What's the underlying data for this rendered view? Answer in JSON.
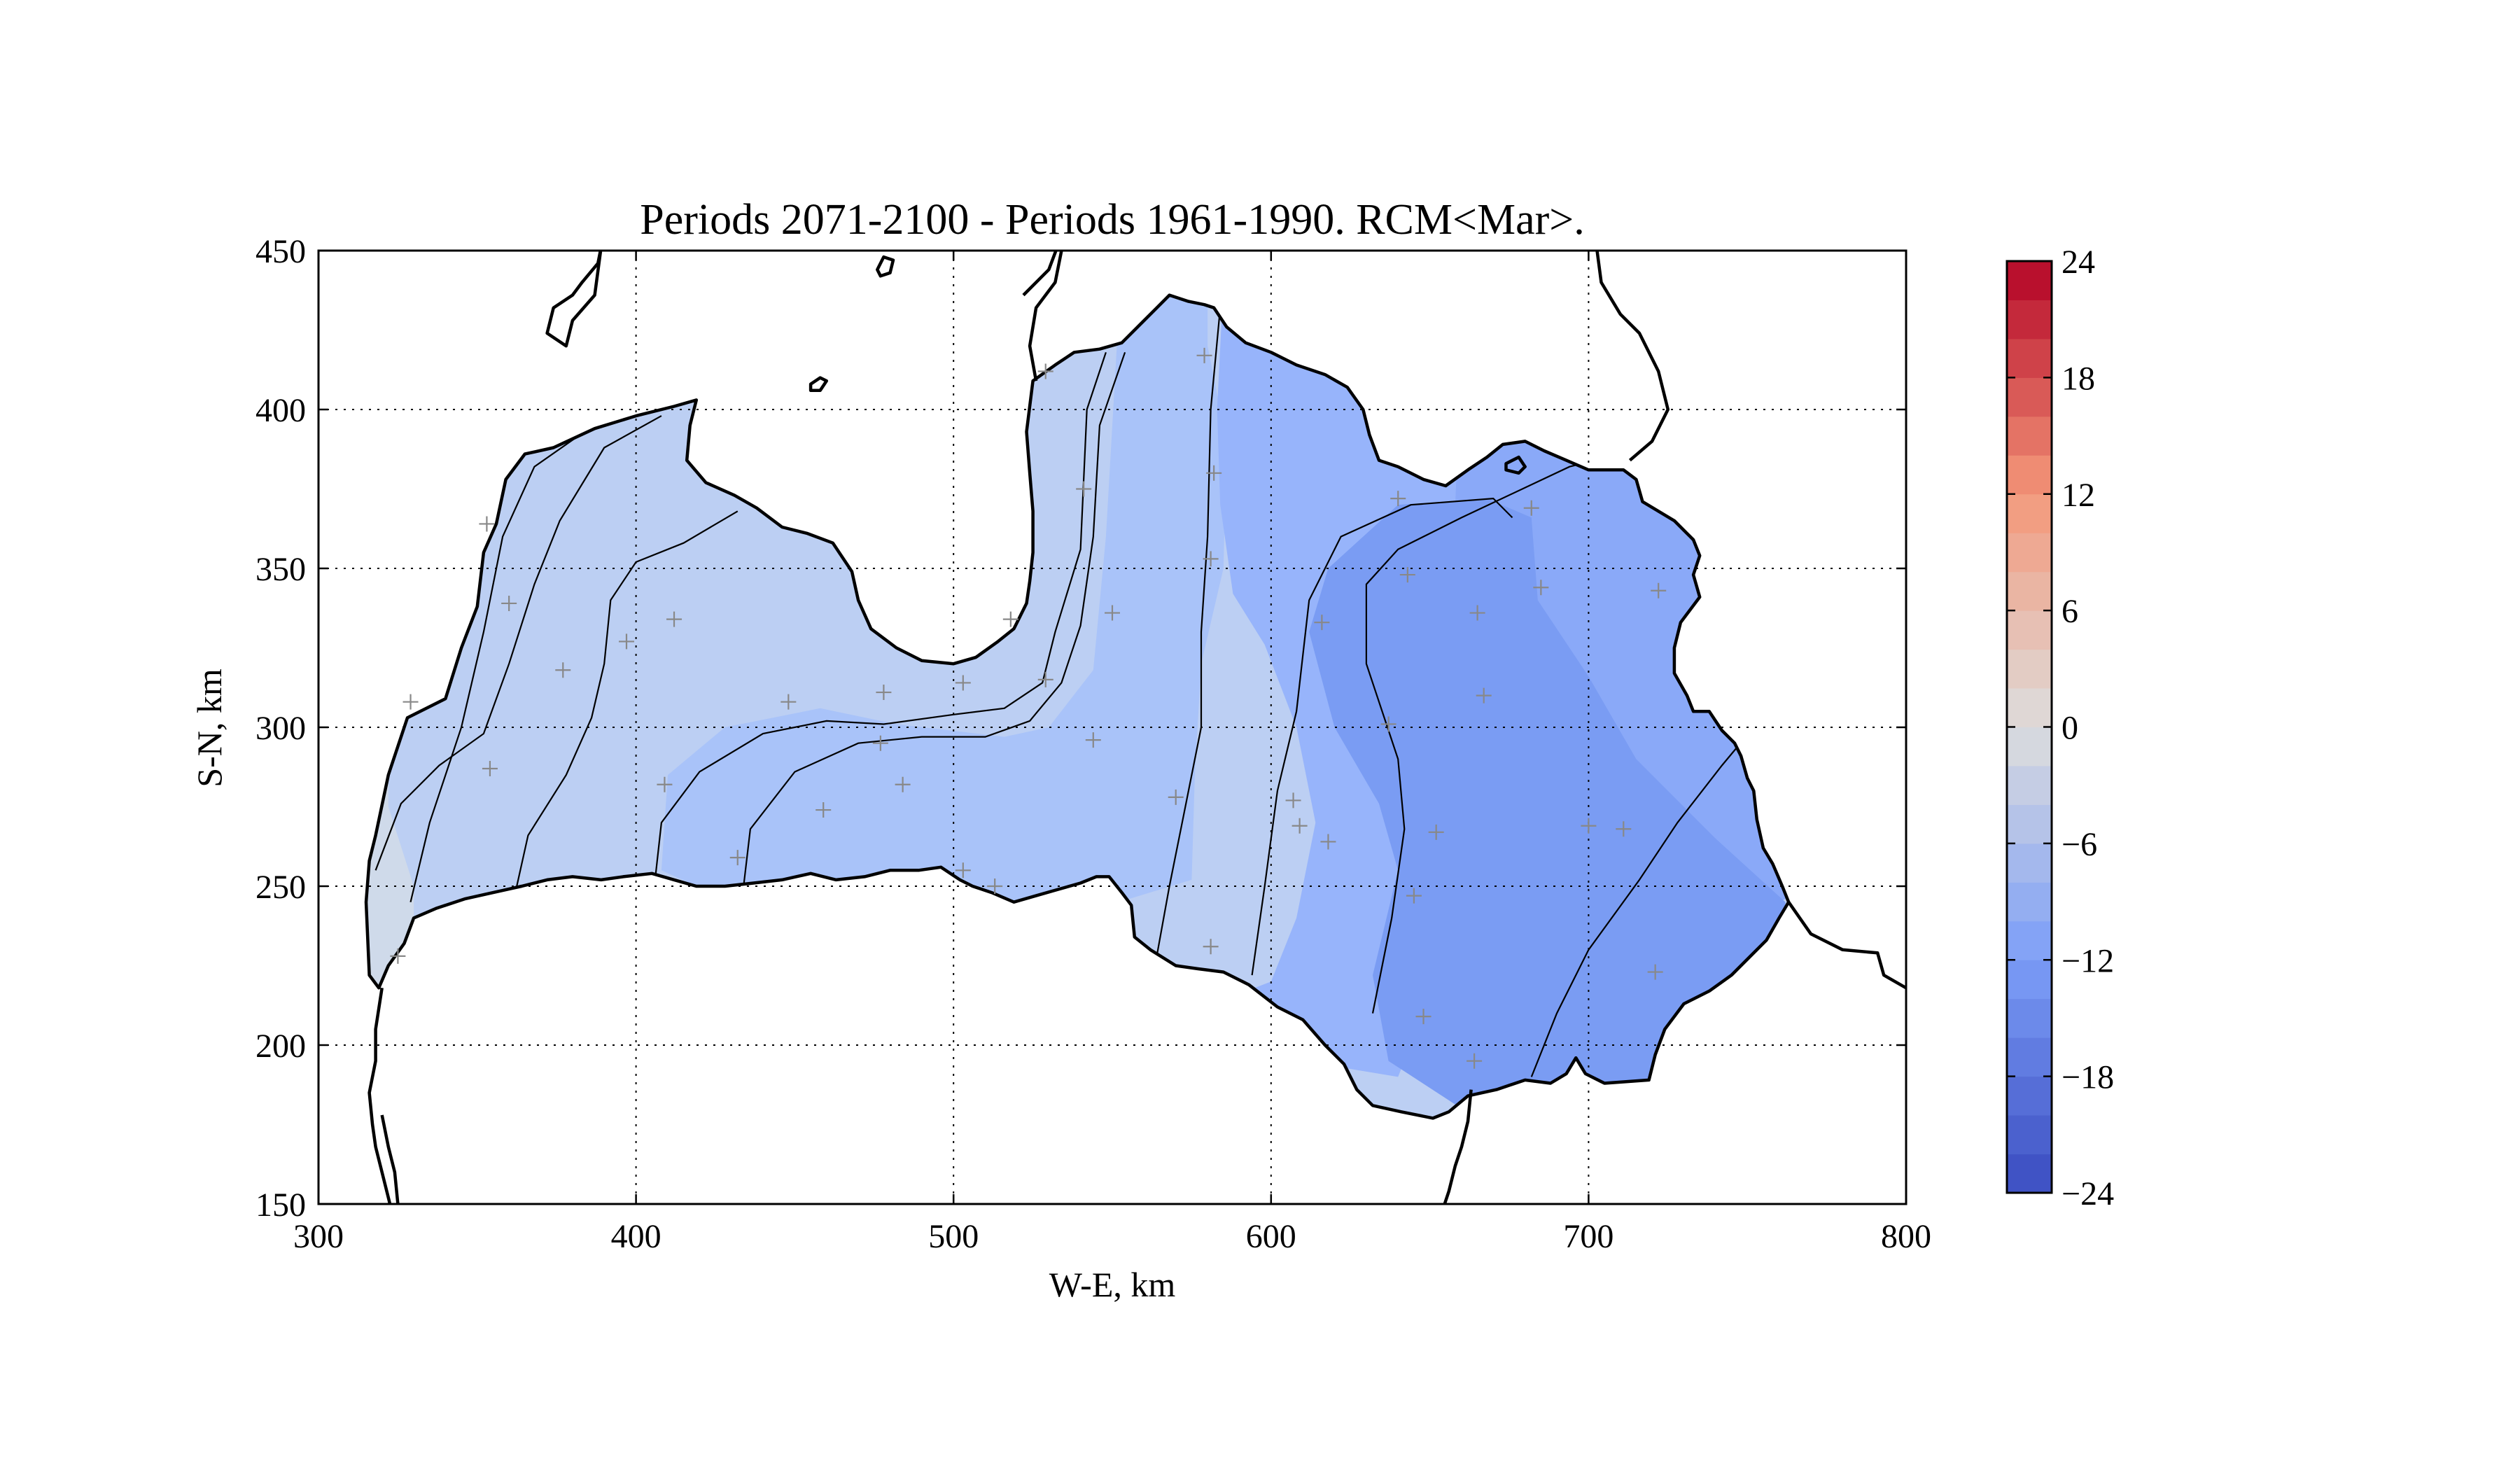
{
  "chart_data": {
    "type": "contour-map",
    "title": "Periods 2071-2100 - Periods 1961-1990. RCM<Mar>.",
    "xlabel": "W-E, km",
    "ylabel": "S-N, km",
    "xlim": [
      300,
      800
    ],
    "ylim": [
      150,
      450
    ],
    "x_ticks": [
      "300",
      "400",
      "500",
      "600",
      "700",
      "800"
    ],
    "y_ticks": [
      "150",
      "200",
      "250",
      "300",
      "350",
      "400",
      "450"
    ],
    "grid": true,
    "colorbar": {
      "range": [
        -24,
        24
      ],
      "step": 2,
      "tick_labels": [
        "24",
        "18",
        "12",
        "6",
        "0",
        "−6",
        "−12",
        "−18",
        "−24"
      ],
      "colormap": "coolwarm"
    },
    "contour_levels": [
      -2,
      -4,
      -6,
      -8,
      -10,
      -12,
      -14,
      -16
    ],
    "stations": [
      [
        329,
        308
      ],
      [
        353,
        364
      ],
      [
        360,
        339
      ],
      [
        354,
        287
      ],
      [
        377,
        318
      ],
      [
        397,
        327
      ],
      [
        409,
        282
      ],
      [
        412,
        334
      ],
      [
        325,
        228
      ],
      [
        432,
        259
      ],
      [
        448,
        308
      ],
      [
        459,
        274
      ],
      [
        477,
        295
      ],
      [
        478,
        311
      ],
      [
        484,
        282
      ],
      [
        503,
        314
      ],
      [
        503,
        255
      ],
      [
        513,
        250
      ],
      [
        518,
        334
      ],
      [
        529,
        412
      ],
      [
        529,
        315
      ],
      [
        541,
        375
      ],
      [
        544,
        296
      ],
      [
        550,
        336
      ],
      [
        570,
        278
      ],
      [
        579,
        417
      ],
      [
        581,
        353
      ],
      [
        582,
        380
      ],
      [
        581,
        231
      ],
      [
        607,
        277
      ],
      [
        609,
        269
      ],
      [
        616,
        333
      ],
      [
        618,
        264
      ],
      [
        637,
        301
      ],
      [
        640,
        372
      ],
      [
        643,
        348
      ],
      [
        645,
        247
      ],
      [
        648,
        209
      ],
      [
        652,
        267
      ],
      [
        664,
        195
      ],
      [
        665,
        336
      ],
      [
        667,
        310
      ],
      [
        682,
        369
      ],
      [
        685,
        344
      ],
      [
        700,
        269
      ],
      [
        711,
        268
      ],
      [
        721,
        223
      ],
      [
        722,
        343
      ]
    ]
  }
}
